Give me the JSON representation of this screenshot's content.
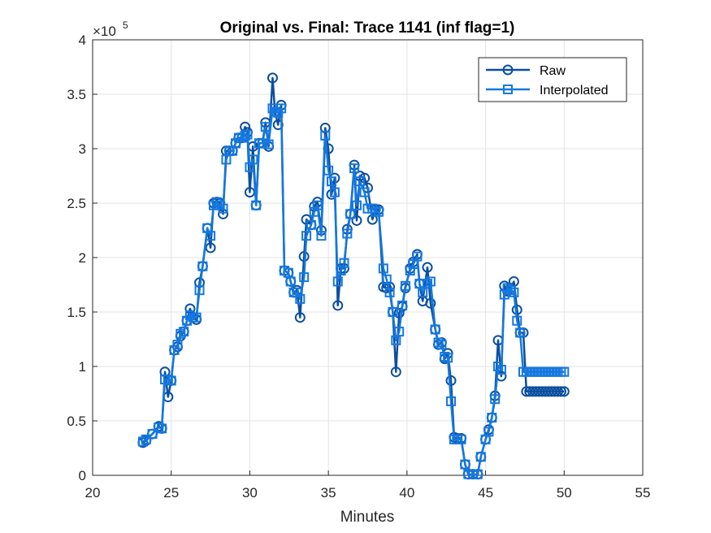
{
  "chart_data": {
    "type": "line",
    "title": "Original vs. Final: Trace 1141 (inf flag=1)",
    "xlabel": "Minutes",
    "ylabel": "",
    "y_exponent_label": "×10",
    "y_exponent_power": "5",
    "xlim": [
      20,
      55
    ],
    "ylim": [
      0,
      4
    ],
    "xticks": [
      20,
      25,
      30,
      35,
      40,
      45,
      50,
      55
    ],
    "xtick_labels": [
      "20",
      "25",
      "30",
      "35",
      "40",
      "45",
      "50",
      "55"
    ],
    "yticks": [
      0,
      0.5,
      1,
      1.5,
      2,
      2.5,
      3,
      3.5,
      4
    ],
    "ytick_labels": [
      "0",
      "0.5",
      "1",
      "1.5",
      "2",
      "2.5",
      "3",
      "3.5",
      "4"
    ],
    "grid": true,
    "legend_position": "top-right",
    "series": [
      {
        "name": "Raw",
        "color": "#0b4fa0",
        "marker": "circle",
        "x": [
          23.2,
          23.4,
          23.8,
          24.2,
          24.4,
          24.6,
          24.8,
          25.0,
          25.2,
          25.4,
          25.6,
          25.8,
          26.0,
          26.2,
          26.4,
          26.6,
          26.8,
          27.0,
          27.3,
          27.5,
          27.7,
          27.9,
          28.1,
          28.3,
          28.5,
          28.7,
          28.9,
          29.1,
          29.3,
          29.5,
          29.7,
          29.85,
          30.0,
          30.2,
          30.4,
          30.6,
          30.8,
          31.0,
          31.2,
          31.45,
          31.6,
          31.8,
          32.0,
          32.2,
          32.45,
          32.6,
          32.8,
          33.0,
          33.2,
          33.45,
          33.6,
          33.9,
          34.1,
          34.3,
          34.55,
          34.8,
          35.0,
          35.2,
          35.4,
          35.6,
          35.8,
          36.0,
          36.2,
          36.4,
          36.65,
          36.8,
          37.0,
          37.3,
          37.5,
          37.8,
          38.0,
          38.2,
          38.5,
          38.7,
          38.9,
          39.1,
          39.3,
          39.5,
          39.7,
          39.9,
          40.2,
          40.4,
          40.65,
          40.8,
          41.0,
          41.3,
          41.5,
          41.8,
          42.0,
          42.2,
          42.4,
          42.6,
          42.8,
          43.0,
          43.2,
          43.45,
          43.7,
          43.9,
          44.2,
          44.5,
          44.7,
          45.0,
          45.2,
          45.4,
          45.6,
          45.8,
          46.0,
          46.2,
          46.4,
          46.6,
          46.8,
          47.0,
          47.2,
          47.4,
          47.6,
          47.8,
          48.0,
          48.2,
          48.4,
          48.6,
          48.8,
          49.0,
          49.2,
          49.4,
          49.6,
          49.8,
          50.0
        ],
        "y": [
          0.3,
          0.32,
          0.38,
          0.45,
          0.43,
          0.95,
          0.72,
          0.87,
          1.15,
          1.18,
          1.28,
          1.32,
          1.42,
          1.53,
          1.45,
          1.43,
          1.77,
          1.92,
          2.27,
          2.09,
          2.5,
          2.51,
          2.5,
          2.4,
          2.98,
          2.98,
          2.98,
          3.05,
          3.1,
          3.1,
          3.2,
          3.15,
          2.6,
          3.02,
          2.48,
          3.05,
          3.05,
          3.24,
          3.02,
          3.65,
          3.34,
          3.22,
          3.4,
          1.88,
          1.86,
          1.78,
          1.68,
          1.7,
          1.45,
          2.01,
          2.35,
          2.3,
          2.47,
          2.51,
          2.25,
          3.19,
          3.0,
          2.58,
          2.73,
          1.56,
          1.9,
          1.9,
          2.26,
          2.4,
          2.85,
          2.34,
          2.75,
          2.73,
          2.64,
          2.35,
          2.44,
          2.44,
          1.73,
          1.72,
          1.73,
          1.5,
          0.95,
          1.49,
          1.55,
          1.72,
          1.9,
          1.96,
          2.03,
          1.76,
          1.6,
          1.91,
          1.58,
          1.34,
          1.2,
          1.22,
          1.07,
          1.12,
          0.87,
          0.35,
          0.34,
          0.34,
          0.1,
          0.01,
          0.01,
          0.01,
          0.17,
          0.33,
          0.42,
          0.53,
          0.73,
          1.24,
          0.91,
          1.74,
          1.69,
          1.72,
          1.78,
          1.52,
          1.31,
          1.31,
          0.77,
          0.77,
          0.77,
          0.77,
          0.77,
          0.77,
          0.77,
          0.77,
          0.77,
          0.77,
          0.77,
          0.77,
          0.77
        ]
      },
      {
        "name": "Interpolated",
        "color": "#1478e0",
        "marker": "square",
        "x": [
          23.2,
          23.4,
          23.8,
          24.2,
          24.4,
          24.6,
          24.8,
          25.0,
          25.2,
          25.4,
          25.6,
          25.8,
          26.0,
          26.2,
          26.4,
          26.6,
          26.8,
          27.0,
          27.3,
          27.5,
          27.7,
          27.9,
          28.1,
          28.3,
          28.5,
          28.7,
          28.9,
          29.1,
          29.3,
          29.5,
          29.7,
          29.85,
          30.0,
          30.2,
          30.4,
          30.6,
          30.8,
          31.0,
          31.2,
          31.45,
          31.6,
          31.8,
          32.0,
          32.2,
          32.45,
          32.6,
          32.8,
          33.0,
          33.2,
          33.45,
          33.6,
          33.9,
          34.1,
          34.3,
          34.55,
          34.8,
          35.0,
          35.2,
          35.4,
          35.6,
          35.8,
          36.0,
          36.2,
          36.4,
          36.65,
          36.8,
          37.0,
          37.3,
          37.5,
          37.8,
          38.0,
          38.2,
          38.5,
          38.7,
          38.9,
          39.1,
          39.3,
          39.5,
          39.7,
          39.9,
          40.2,
          40.4,
          40.65,
          40.8,
          41.0,
          41.3,
          41.5,
          41.8,
          42.0,
          42.2,
          42.4,
          42.6,
          42.8,
          43.0,
          43.2,
          43.45,
          43.7,
          43.9,
          44.2,
          44.5,
          44.7,
          45.0,
          45.2,
          45.4,
          45.6,
          45.8,
          46.0,
          46.2,
          46.4,
          46.6,
          46.8,
          47.0,
          47.2,
          47.4,
          47.6,
          47.8,
          48.0,
          48.2,
          48.4,
          48.6,
          48.8,
          49.0,
          49.2,
          49.4,
          49.6,
          49.8,
          50.0
        ],
        "y": [
          0.31,
          0.33,
          0.38,
          0.44,
          0.43,
          0.88,
          0.88,
          0.87,
          1.15,
          1.2,
          1.3,
          1.32,
          1.42,
          1.47,
          1.45,
          1.45,
          1.7,
          1.92,
          2.27,
          2.2,
          2.48,
          2.51,
          2.48,
          2.45,
          2.9,
          2.98,
          2.98,
          3.05,
          3.1,
          3.1,
          3.12,
          3.13,
          2.83,
          2.9,
          2.48,
          3.05,
          3.05,
          3.2,
          3.04,
          3.37,
          3.34,
          3.33,
          3.37,
          1.88,
          1.86,
          1.78,
          1.68,
          1.68,
          1.62,
          1.82,
          2.2,
          2.3,
          2.42,
          2.48,
          2.2,
          3.12,
          2.8,
          2.7,
          2.6,
          1.78,
          1.88,
          1.95,
          2.22,
          2.4,
          2.82,
          2.48,
          2.7,
          2.6,
          2.45,
          2.45,
          2.42,
          2.42,
          1.9,
          1.8,
          1.68,
          1.5,
          1.24,
          1.32,
          1.56,
          1.74,
          1.88,
          1.94,
          2.01,
          1.76,
          1.68,
          1.76,
          1.78,
          1.34,
          1.22,
          1.2,
          1.09,
          1.08,
          0.68,
          0.33,
          0.33,
          0.33,
          0.1,
          0.01,
          0.01,
          0.01,
          0.17,
          0.33,
          0.4,
          0.53,
          0.7,
          1.0,
          0.97,
          1.66,
          1.72,
          1.7,
          1.68,
          1.42,
          1.31,
          0.95,
          0.95,
          0.95,
          0.95,
          0.95,
          0.95,
          0.95,
          0.95,
          0.95,
          0.95,
          0.95,
          0.95,
          0.95,
          0.95
        ]
      }
    ]
  }
}
